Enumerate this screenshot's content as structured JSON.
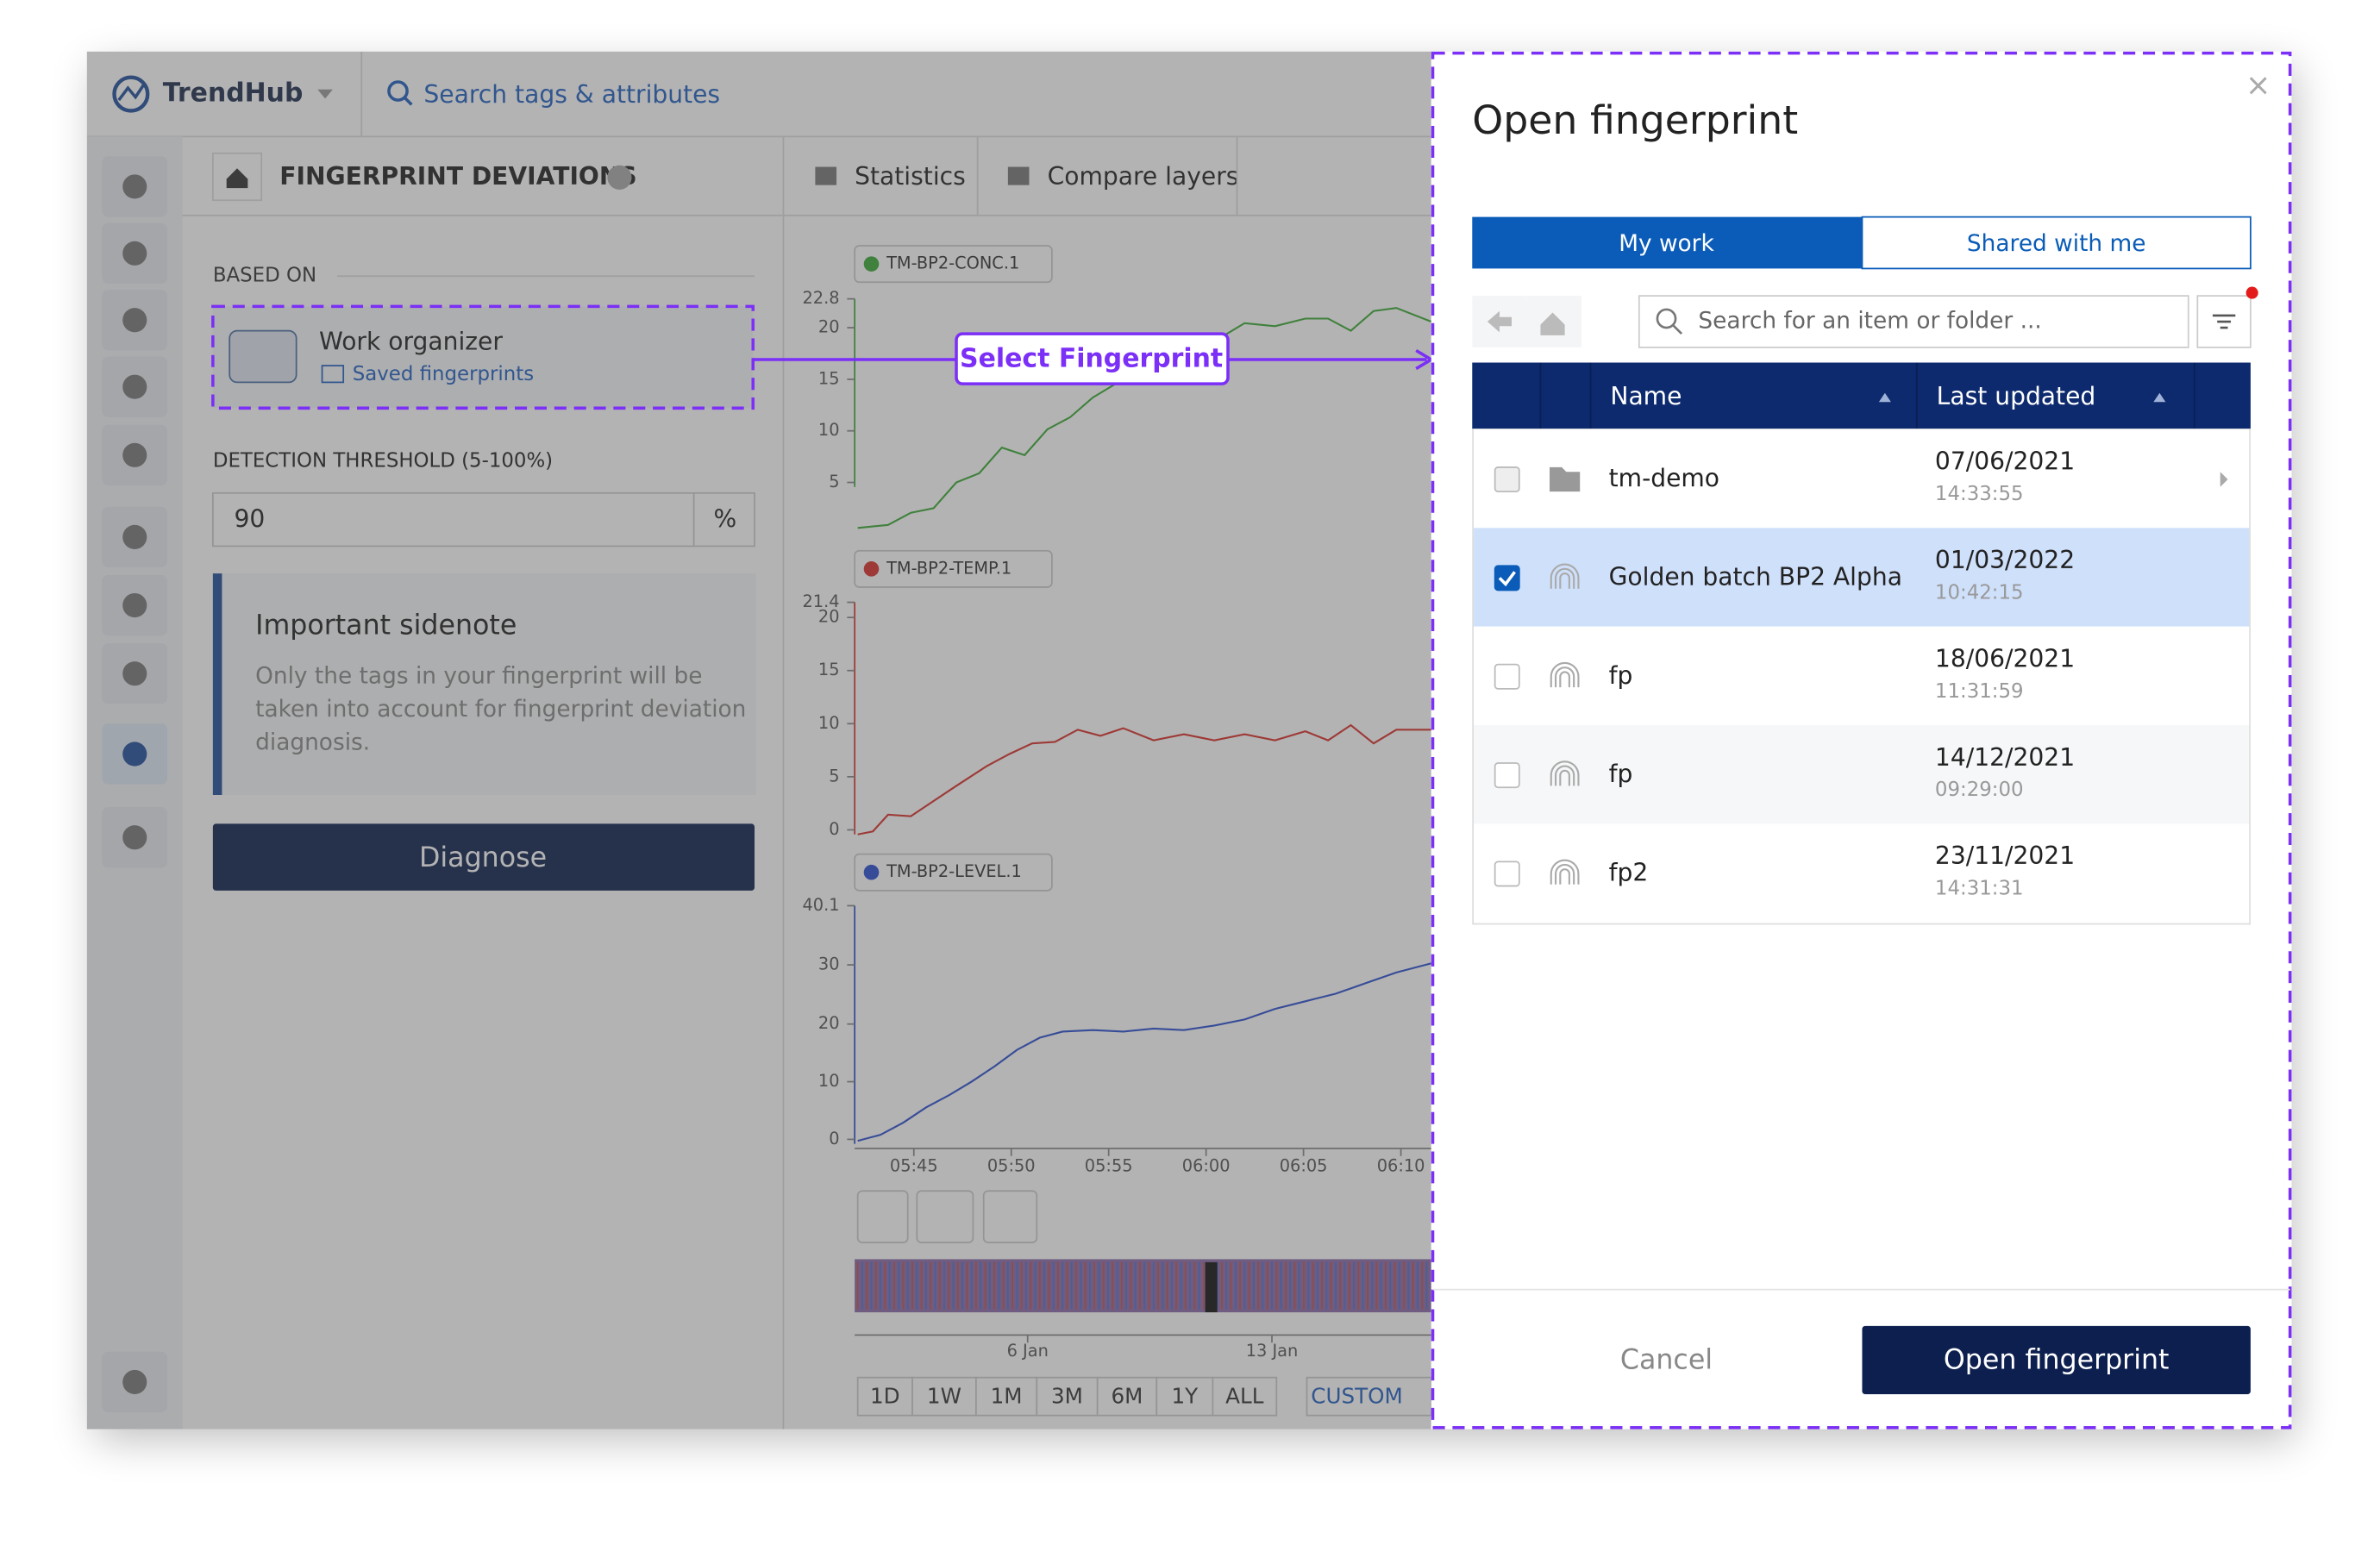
{
  "app": {
    "brand": "TrendHub",
    "search_placeholder": "Search tags & attributes"
  },
  "left_panel": {
    "title": "FINGERPRINT DEVIATIONS",
    "based_on_label": "BASED ON",
    "source_title": "Work organizer",
    "source_subtitle": "Saved fingerprints",
    "threshold_label": "DETECTION THRESHOLD (5-100%)",
    "threshold_value": "90",
    "threshold_unit": "%",
    "sidenote_title": "Important sidenote",
    "sidenote_lines": [
      "Only the tags in your fingerprint will be",
      "taken into account for fingerprint deviation",
      "diagnosis."
    ],
    "diagnose_button": "Diagnose"
  },
  "toolbar": {
    "tabs": [
      "Statistics",
      "Compare layers"
    ]
  },
  "trend_charts": [
    {
      "tag": "TM-BP2-CONC.1",
      "color": "#3aaa35",
      "yticks": [
        "22.8",
        "20",
        "15",
        "10",
        "5"
      ]
    },
    {
      "tag": "TM-BP2-TEMP.1",
      "color": "#d9302a",
      "yticks": [
        "21.4",
        "20",
        "15",
        "10",
        "5",
        "0"
      ]
    },
    {
      "tag": "TM-BP2-LEVEL.1",
      "color": "#2a4fd0",
      "yticks": [
        "40.1",
        "30",
        "20",
        "10",
        "0"
      ]
    }
  ],
  "time_axis": [
    "05:45",
    "05:50",
    "05:55",
    "06:00",
    "06:05",
    "06:10"
  ],
  "navigator_axis": [
    "6 Jan",
    "13 Jan"
  ],
  "ranges": [
    "1D",
    "1W",
    "1M",
    "3M",
    "6M",
    "1Y",
    "ALL",
    "CUSTOM"
  ],
  "annotations": {
    "panel_label": "Work organizer panel",
    "arrow_label": "Select Fingerprint"
  },
  "dialog": {
    "title": "Open fingerprint",
    "tabs": [
      "My work",
      "Shared with me"
    ],
    "search_placeholder": "Search for an item or folder ...",
    "columns": [
      "Name",
      "Last updated"
    ],
    "rows": [
      {
        "name": "tm-demo",
        "date": "07/06/2021",
        "time": "14:33:55",
        "kind": "folder",
        "checked": false
      },
      {
        "name": "Golden batch BP2 Alpha",
        "date": "01/03/2022",
        "time": "10:42:15",
        "kind": "fingerprint",
        "checked": true
      },
      {
        "name": "fp",
        "date": "18/06/2021",
        "time": "11:31:59",
        "kind": "fingerprint",
        "checked": false
      },
      {
        "name": "fp",
        "date": "14/12/2021",
        "time": "09:29:00",
        "kind": "fingerprint",
        "checked": false
      },
      {
        "name": "fp2",
        "date": "23/11/2021",
        "time": "14:31:31",
        "kind": "fingerprint",
        "checked": false
      }
    ],
    "cancel": "Cancel",
    "confirm": "Open fingerprint"
  }
}
